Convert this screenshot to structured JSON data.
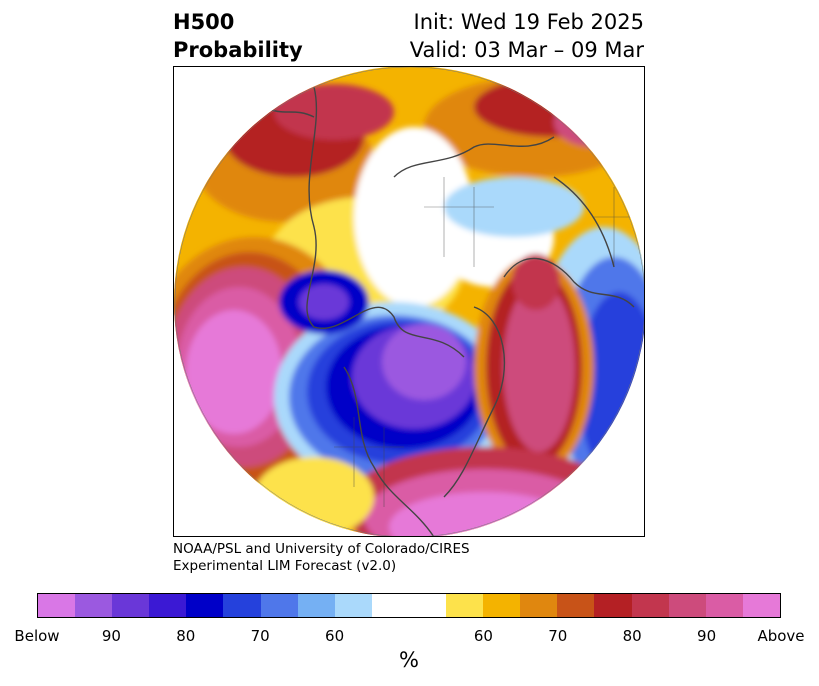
{
  "title": {
    "variable": "H500",
    "product": "Probability",
    "init": "Init: Wed 19 Feb 2025",
    "valid": "Valid: 03 Mar – 09 Mar"
  },
  "credit": {
    "line1": "NOAA/PSL and University of Colorado/CIRES",
    "line2": "Experimental LIM Forecast (v2.0)"
  },
  "colorbar": {
    "unit": "%",
    "tick_labels": [
      "Below",
      "90",
      "80",
      "70",
      "60",
      "60",
      "70",
      "80",
      "90",
      "Above"
    ],
    "colors": [
      "#d977e6",
      "#9b59e0",
      "#6a37d8",
      "#3b19d4",
      "#0000c8",
      "#2541dc",
      "#4f77ea",
      "#75b0f3",
      "#aad9fb",
      "#ffffff",
      "#ffffff",
      "#fde24b",
      "#f4b300",
      "#e0870f",
      "#c85318",
      "#b42024",
      "#c2364e",
      "#cd4b7c",
      "#da5ca5",
      "#e679d8"
    ]
  },
  "map": {
    "projection": "north-polar-stereographic",
    "field": "500 hPa height anomaly probability"
  }
}
